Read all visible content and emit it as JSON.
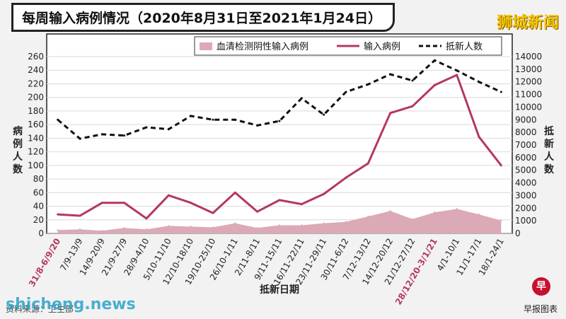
{
  "header": {
    "title": "每周输入病例情况（2020年8月31日至2021年1月24日）",
    "brand": "狮城新闻"
  },
  "chart_data": {
    "type": "line",
    "categories": [
      "31/8-6/9/20",
      "7/9-13/9",
      "14/9-20/9",
      "21/9-27/9",
      "28/9-4/10",
      "5/10-11/10",
      "12/10-18/10",
      "19/10-25/10",
      "26/10-1/11",
      "2/11-8/11",
      "9/11-15/11",
      "16/11-22/11",
      "23/11-29/11",
      "30/11-6/12",
      "7/12-13/12",
      "14/12-20/12",
      "21/12-27/12",
      "28/12/20-3/1/21",
      "4/1-10/1",
      "11/1-17/1",
      "18/1-24/1"
    ],
    "highlight_categories": [
      "31/8-6/9/20",
      "28/12/20-3/1/21"
    ],
    "highlight_color": "#b5385c",
    "series": [
      {
        "name": "血清检测阴性输入病例",
        "kind": "area",
        "axis": "left",
        "color": "#dbaab6",
        "values": [
          5,
          6,
          4,
          8,
          6,
          11,
          10,
          9,
          15,
          8,
          12,
          12,
          15,
          17,
          25,
          33,
          21,
          31,
          36,
          28,
          19
        ]
      },
      {
        "name": "输入病例",
        "kind": "line",
        "axis": "left",
        "color": "#b5385c",
        "values": [
          28,
          26,
          45,
          45,
          22,
          56,
          45,
          30,
          60,
          32,
          49,
          43,
          58,
          82,
          103,
          177,
          187,
          218,
          233,
          142,
          100
        ]
      },
      {
        "name": "抵新人数",
        "kind": "dashed",
        "axis": "right",
        "color": "#111111",
        "values": [
          9000,
          7500,
          7850,
          7750,
          8400,
          8250,
          9300,
          9000,
          9000,
          8550,
          8900,
          10700,
          9400,
          11200,
          11800,
          12600,
          12100,
          13700,
          12900,
          12000,
          11200
        ]
      }
    ],
    "ylabel": "病例人数",
    "ylabel_right": "抵新人数",
    "xlabel": "抵新日期",
    "ylim": [
      0,
      260
    ],
    "ylim_right": [
      0,
      14000
    ],
    "yticks": [
      0,
      20,
      40,
      60,
      80,
      100,
      120,
      140,
      160,
      180,
      200,
      220,
      240,
      260
    ],
    "yticks_right": [
      0,
      1000,
      2000,
      3000,
      4000,
      5000,
      6000,
      7000,
      8000,
      9000,
      10000,
      11000,
      12000,
      13000,
      14000
    ],
    "grid": true,
    "legend": "top"
  },
  "footer": {
    "source": "资料来源：卫生部",
    "credit": "早报图表",
    "logo": "早",
    "watermark": "shicheng.news"
  }
}
